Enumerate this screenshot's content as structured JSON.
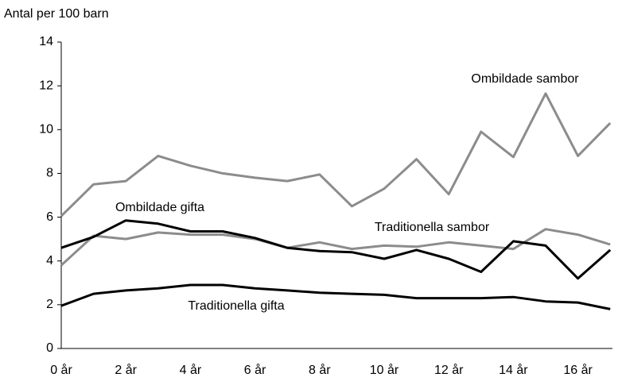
{
  "chart_data": {
    "type": "line",
    "ylabel": "Antal per 100 barn",
    "categories": [
      "0 år",
      null,
      "2 år",
      null,
      "4 år",
      null,
      "6 år",
      null,
      "8 år",
      null,
      "10 år",
      null,
      "12 år",
      null,
      "14 år",
      null,
      "16 år",
      null
    ],
    "series": [
      {
        "name": "Ombildade sambor",
        "color": "#8c8c8c",
        "values": [
          6.05,
          7.5,
          7.65,
          8.8,
          8.35,
          8.0,
          7.8,
          7.65,
          7.95,
          6.5,
          7.3,
          8.65,
          7.05,
          9.9,
          8.75,
          11.65,
          8.8,
          10.3
        ]
      },
      {
        "name": "Traditionella sambor",
        "color": "#8c8c8c",
        "values": [
          3.8,
          5.15,
          5.0,
          5.3,
          5.2,
          5.2,
          5.0,
          4.6,
          4.85,
          4.55,
          4.7,
          4.65,
          4.85,
          4.7,
          4.55,
          5.45,
          5.2,
          4.75
        ]
      },
      {
        "name": "Ombildade gifta",
        "color": "#000000",
        "values": [
          4.6,
          5.1,
          5.85,
          5.7,
          5.35,
          5.35,
          5.05,
          4.6,
          4.45,
          4.4,
          4.1,
          4.5,
          4.1,
          3.5,
          4.9,
          4.7,
          3.2,
          4.5
        ]
      },
      {
        "name": "Traditionella gifta",
        "color": "#000000",
        "values": [
          1.95,
          2.5,
          2.65,
          2.75,
          2.9,
          2.9,
          2.75,
          2.65,
          2.55,
          2.5,
          2.45,
          2.3,
          2.3,
          2.3,
          2.35,
          2.15,
          2.1,
          1.8
        ]
      }
    ],
    "ylim": [
      0,
      14
    ],
    "yticks": [
      0,
      2,
      4,
      6,
      8,
      10,
      12,
      14
    ],
    "grid": false
  }
}
